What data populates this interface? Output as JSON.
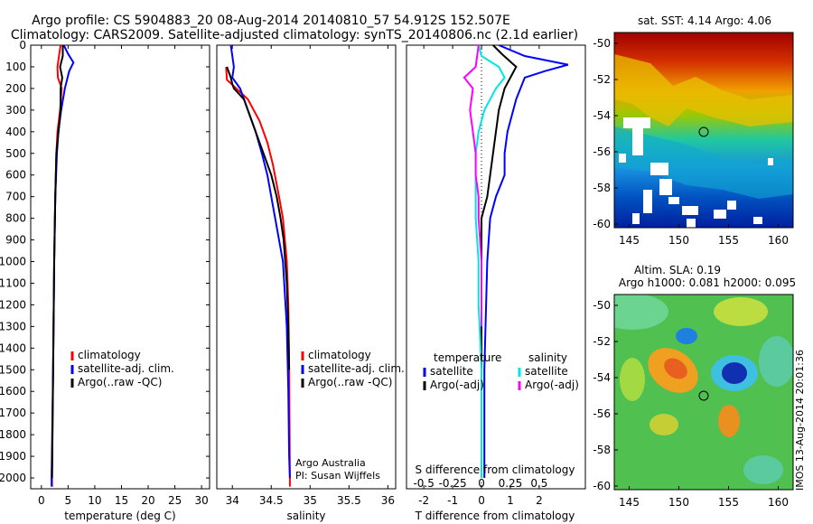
{
  "title_line1": "Argo profile: CS 5904883_20 08-Aug-2014 20140810_57 54.912S 152.507E",
  "title_line2": "Climatology: CARS2009. Satellite-adjusted climatology: synTS_20140806.nc (2.1d earlier)",
  "depth_ticks": [
    "0",
    "100",
    "200",
    "300",
    "400",
    "500",
    "600",
    "700",
    "800",
    "900",
    "1000",
    "1100",
    "1200",
    "1300",
    "1400",
    "1500",
    "1600",
    "1700",
    "1800",
    "1900",
    "2000"
  ],
  "chart_data": [
    {
      "type": "line",
      "xlabel": "temperature (deg C)",
      "xticks": [
        "0",
        "5",
        "10",
        "15",
        "20",
        "25",
        "30"
      ],
      "xlim": [
        -2,
        31.5
      ],
      "ylim": [
        0,
        2050
      ],
      "legend_placement": "lower-center",
      "series": [
        {
          "name": "climatology",
          "color": "#ff0000",
          "points": [
            [
              3.6,
              0
            ],
            [
              3.3,
              50
            ],
            [
              3.0,
              100
            ],
            [
              3.1,
              150
            ],
            [
              3.8,
              200
            ],
            [
              3.5,
              300
            ],
            [
              3.0,
              400
            ],
            [
              2.8,
              500
            ],
            [
              2.6,
              700
            ],
            [
              2.4,
              1000
            ],
            [
              2.2,
              1500
            ],
            [
              2.0,
              2000
            ],
            [
              2.0,
              2040
            ]
          ]
        },
        {
          "name": "satellite-adj. clim.",
          "color": "#0000ff",
          "points": [
            [
              4.2,
              0
            ],
            [
              5.0,
              40
            ],
            [
              6.0,
              80
            ],
            [
              5.2,
              120
            ],
            [
              4.4,
              200
            ],
            [
              3.7,
              300
            ],
            [
              3.2,
              400
            ],
            [
              2.9,
              500
            ],
            [
              2.6,
              700
            ],
            [
              2.4,
              1000
            ],
            [
              2.2,
              1500
            ],
            [
              1.9,
              2000
            ],
            [
              1.9,
              2040
            ]
          ]
        },
        {
          "name": "Argo(..raw -QC)",
          "color": "#000000",
          "points": [
            [
              4.0,
              0
            ],
            [
              4.0,
              50
            ],
            [
              3.5,
              100
            ],
            [
              3.9,
              150
            ],
            [
              3.6,
              200
            ],
            [
              3.6,
              300
            ],
            [
              3.2,
              400
            ],
            [
              2.8,
              500
            ],
            [
              2.6,
              700
            ],
            [
              2.4,
              1000
            ],
            [
              2.2,
              1500
            ],
            [
              2.0,
              2000
            ]
          ]
        }
      ]
    },
    {
      "type": "line",
      "xlabel": "salinity",
      "xticks": [
        "34",
        "34.5",
        "35",
        "35.5",
        "36"
      ],
      "xtick_values": [
        34,
        34.5,
        35,
        35.5,
        36
      ],
      "xlim": [
        33.8,
        36.1
      ],
      "ylim": [
        0,
        2050
      ],
      "legend_placement": "lower-right",
      "annotation": [
        "Argo Australia",
        "PI: Susan Wijffels"
      ],
      "series": [
        {
          "name": "climatology",
          "color": "#ff0000",
          "points": [
            [
              33.92,
              100
            ],
            [
              33.93,
              160
            ],
            [
              34.05,
              200
            ],
            [
              34.2,
              250
            ],
            [
              34.35,
              350
            ],
            [
              34.45,
              450
            ],
            [
              34.52,
              550
            ],
            [
              34.6,
              700
            ],
            [
              34.65,
              800
            ],
            [
              34.7,
              1000
            ],
            [
              34.72,
              1200
            ],
            [
              34.73,
              1500
            ],
            [
              34.74,
              2000
            ],
            [
              34.74,
              2040
            ]
          ]
        },
        {
          "name": "satellite-adj. clim.",
          "color": "#0000ff",
          "points": [
            [
              33.98,
              0
            ],
            [
              34.0,
              50
            ],
            [
              34.02,
              100
            ],
            [
              34.0,
              150
            ],
            [
              34.1,
              200
            ],
            [
              34.2,
              300
            ],
            [
              34.3,
              400
            ],
            [
              34.38,
              500
            ],
            [
              34.45,
              600
            ],
            [
              34.55,
              800
            ],
            [
              34.65,
              1000
            ],
            [
              34.7,
              1300
            ],
            [
              34.72,
              1600
            ],
            [
              34.73,
              1900
            ],
            [
              34.74,
              2000
            ]
          ]
        },
        {
          "name": "Argo(..raw -QC)",
          "color": "#000000",
          "points": [
            [
              33.93,
              100
            ],
            [
              33.98,
              150
            ],
            [
              34.0,
              180
            ],
            [
              34.02,
              200
            ],
            [
              34.15,
              250
            ],
            [
              34.2,
              300
            ],
            [
              34.3,
              400
            ],
            [
              34.4,
              500
            ],
            [
              34.5,
              600
            ],
            [
              34.57,
              700
            ],
            [
              34.62,
              800
            ],
            [
              34.66,
              900
            ],
            [
              34.7,
              1100
            ],
            [
              34.72,
              1300
            ],
            [
              34.73,
              1500
            ]
          ]
        }
      ]
    },
    {
      "type": "line",
      "xlabel": "T difference from climatology",
      "xlabel_top": "S difference from climatology",
      "xticks": [
        "-2",
        "-1",
        "0",
        "1",
        "2"
      ],
      "xticks_top": [
        "-0.5",
        "-0.25",
        "0",
        "0.25",
        "0.5"
      ],
      "xlim": [
        -2.6,
        3.6
      ],
      "ylim": [
        0,
        2050
      ],
      "legend_groups": [
        {
          "header": "temperature",
          "entries": [
            {
              "name": "satellite",
              "color": "#0000ff"
            },
            {
              "name": "Argo(-adj)",
              "color": "#000000"
            }
          ]
        },
        {
          "header": "salinity",
          "entries": [
            {
              "name": "satellite",
              "color": "#00e5e5"
            },
            {
              "name": "Argo(-adj)",
              "color": "#ff00ff"
            }
          ]
        }
      ],
      "series": [
        {
          "name": "temperature satellite",
          "color": "#0000ff",
          "points": [
            [
              0.6,
              0
            ],
            [
              1.5,
              50
            ],
            [
              3.0,
              90
            ],
            [
              2.2,
              120
            ],
            [
              1.5,
              150
            ],
            [
              1.2,
              250
            ],
            [
              1.0,
              350
            ],
            [
              0.9,
              400
            ],
            [
              0.8,
              500
            ],
            [
              0.8,
              600
            ],
            [
              0.5,
              700
            ],
            [
              0.3,
              800
            ],
            [
              0.2,
              1000
            ],
            [
              0.1,
              1500
            ],
            [
              0.1,
              2000
            ]
          ]
        },
        {
          "name": "temperature Argo(-adj)",
          "color": "#000000",
          "points": [
            [
              0.4,
              0
            ],
            [
              0.7,
              40
            ],
            [
              1.2,
              100
            ],
            [
              1.0,
              150
            ],
            [
              0.8,
              200
            ],
            [
              0.7,
              250
            ],
            [
              0.6,
              300
            ],
            [
              0.5,
              400
            ],
            [
              0.4,
              500
            ],
            [
              0.3,
              600
            ],
            [
              0.2,
              700
            ],
            [
              0.0,
              800
            ],
            [
              0.0,
              1000
            ],
            [
              0.0,
              1500
            ]
          ]
        },
        {
          "name": "salinity satellite",
          "color": "#00e5e5",
          "points": [
            [
              -0.1,
              0
            ],
            [
              0.0,
              50
            ],
            [
              0.6,
              100
            ],
            [
              0.8,
              150
            ],
            [
              0.5,
              200
            ],
            [
              0.1,
              300
            ],
            [
              -0.1,
              400
            ],
            [
              -0.2,
              500
            ],
            [
              -0.2,
              600
            ],
            [
              -0.2,
              700
            ],
            [
              -0.2,
              800
            ],
            [
              -0.1,
              1000
            ],
            [
              -0.1,
              1200
            ],
            [
              0.0,
              1500
            ],
            [
              0.0,
              2000
            ]
          ]
        },
        {
          "name": "salinity Argo(-adj)",
          "color": "#ff00ff",
          "points": [
            [
              -0.1,
              0
            ],
            [
              -0.2,
              100
            ],
            [
              -0.6,
              150
            ],
            [
              -0.3,
              200
            ],
            [
              -0.4,
              300
            ],
            [
              -0.3,
              400
            ],
            [
              -0.2,
              500
            ],
            [
              -0.2,
              600
            ],
            [
              -0.1,
              700
            ],
            [
              -0.1,
              800
            ],
            [
              0.0,
              1000
            ],
            [
              0.0,
              1300
            ]
          ]
        }
      ]
    },
    {
      "type": "heatmap",
      "title": "sat. SST: 4.14  Argo: 4.06",
      "xticks": [
        "145",
        "150",
        "155",
        "160"
      ],
      "yticks": [
        "-50",
        "-52",
        "-54",
        "-56",
        "-58",
        "-60"
      ],
      "xlim": [
        143.5,
        161.5
      ],
      "ylim": [
        -60.2,
        -49.4
      ],
      "marker": {
        "lon": 152.5,
        "lat": -54.9
      }
    },
    {
      "type": "heatmap",
      "title": "Altim. SLA: 0.19",
      "subtitle": "Argo h1000: 0.081  h2000: 0.095",
      "xticks": [
        "145",
        "150",
        "155",
        "160"
      ],
      "yticks": [
        "-50",
        "-52",
        "-54",
        "-56",
        "-58",
        "-60"
      ],
      "xlim": [
        143.5,
        161.5
      ],
      "ylim": [
        -60.2,
        -49.4
      ],
      "marker": {
        "lon": 152.5,
        "lat": -55.0
      }
    }
  ],
  "footer_vertical": "IMOS 13-Aug-2014 20:01:36"
}
